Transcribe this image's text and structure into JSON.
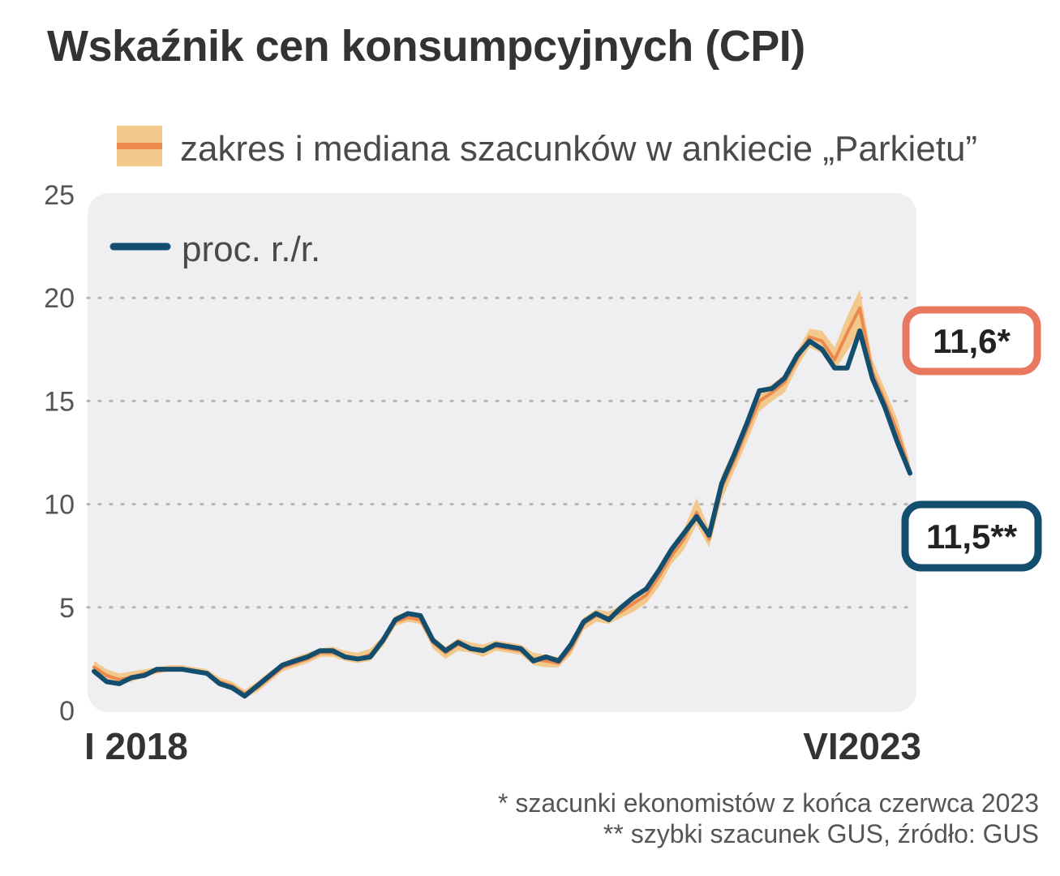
{
  "title": "Wskaźnik cen konsumpcyjnych (CPI)",
  "colors": {
    "cpi_line": "#134e6f",
    "range_band": "#f3c88d",
    "median_line": "#eb8a4c",
    "plot_bg": "#efeff1",
    "estimate_callout": "#e87960",
    "flash_callout": "#134e6f",
    "grid": "#b4b4b4"
  },
  "footnotes": {
    "note1": "* szacunki ekonomistów z końca czerwca 2023",
    "note2": "** szybki szacunek GUS, źródło: GUS"
  },
  "chart_data": {
    "type": "line",
    "title": "Wskaźnik cen konsumpcyjnych (CPI)",
    "ylim": [
      0,
      25
    ],
    "yticks": [
      0,
      5,
      10,
      15,
      20,
      25
    ],
    "grid": true,
    "x_start_label": "I 2018",
    "x_end_label": "VI2023",
    "legend": [
      {
        "key": "band",
        "label": "zakres i mediana szacunków w ankiecie „Parkietu”",
        "placement": "top"
      },
      {
        "key": "line",
        "label": "proc. r./r.",
        "placement": "top-left"
      }
    ],
    "series": [
      {
        "name": "proc. r./r.",
        "values": [
          1.9,
          1.4,
          1.3,
          1.6,
          1.7,
          2.0,
          2.0,
          2.0,
          1.9,
          1.8,
          1.3,
          1.1,
          0.7,
          1.2,
          1.7,
          2.2,
          2.4,
          2.6,
          2.9,
          2.9,
          2.6,
          2.5,
          2.6,
          3.4,
          4.4,
          4.7,
          4.6,
          3.4,
          2.9,
          3.3,
          3.0,
          2.9,
          3.2,
          3.1,
          3.0,
          2.4,
          2.6,
          2.4,
          3.2,
          4.3,
          4.7,
          4.4,
          5.0,
          5.5,
          5.9,
          6.8,
          7.8,
          8.6,
          9.4,
          8.5,
          11.0,
          12.4,
          13.9,
          15.5,
          15.6,
          16.1,
          17.2,
          17.9,
          17.5,
          16.6,
          16.6,
          18.4,
          16.1,
          14.7,
          13.0,
          11.5
        ]
      },
      {
        "name": "mediana szacunków",
        "values": [
          2.1,
          1.7,
          1.5,
          1.6,
          1.8,
          1.9,
          2.0,
          2.0,
          1.9,
          1.8,
          1.4,
          1.2,
          0.8,
          1.1,
          1.6,
          2.1,
          2.3,
          2.5,
          2.8,
          2.8,
          2.6,
          2.5,
          2.7,
          3.3,
          4.3,
          4.5,
          4.4,
          3.3,
          2.8,
          3.2,
          3.0,
          2.9,
          3.1,
          3.0,
          2.9,
          2.5,
          2.4,
          2.3,
          3.0,
          4.2,
          4.6,
          4.5,
          4.8,
          5.2,
          5.6,
          6.5,
          7.5,
          8.3,
          9.6,
          8.3,
          10.8,
          12.1,
          13.6,
          15.0,
          15.4,
          15.9,
          17.0,
          18.1,
          17.9,
          17.0,
          18.3,
          19.5,
          16.4,
          15.0,
          13.5,
          11.6
        ]
      }
    ],
    "range": {
      "low": [
        1.9,
        1.5,
        1.3,
        1.4,
        1.6,
        1.8,
        1.9,
        1.9,
        1.8,
        1.7,
        1.2,
        1.0,
        0.6,
        0.9,
        1.4,
        1.9,
        2.1,
        2.3,
        2.6,
        2.6,
        2.4,
        2.3,
        2.4,
        3.1,
        4.1,
        4.3,
        4.2,
        3.0,
        2.5,
        2.9,
        2.8,
        2.6,
        2.9,
        2.8,
        2.7,
        2.2,
        2.1,
        2.1,
        2.7,
        3.9,
        4.3,
        4.2,
        4.5,
        4.8,
        5.2,
        6.0,
        7.1,
        7.8,
        9.0,
        7.9,
        10.2,
        11.6,
        13.0,
        14.5,
        15.0,
        15.4,
        16.6,
        17.6,
        17.3,
        16.5,
        17.4,
        18.4,
        15.9,
        14.4,
        13.0,
        11.2
      ],
      "high": [
        2.4,
        2.0,
        1.8,
        1.9,
        2.0,
        2.1,
        2.2,
        2.2,
        2.1,
        2.0,
        1.6,
        1.4,
        1.0,
        1.4,
        1.9,
        2.3,
        2.6,
        2.8,
        3.0,
        3.1,
        2.9,
        2.8,
        3.0,
        3.6,
        4.6,
        4.8,
        4.7,
        3.6,
        3.1,
        3.5,
        3.3,
        3.2,
        3.4,
        3.3,
        3.2,
        2.8,
        2.7,
        2.6,
        3.3,
        4.5,
        4.9,
        4.8,
        5.1,
        5.6,
        6.0,
        6.9,
        8.0,
        8.8,
        10.3,
        8.8,
        11.4,
        12.7,
        14.2,
        15.5,
        15.8,
        16.3,
        17.4,
        18.5,
        18.4,
        17.6,
        19.1,
        20.4,
        17.0,
        15.6,
        14.1,
        12.0
      ]
    },
    "callouts": [
      {
        "id": "estimate",
        "value": 11.6,
        "label": "11,6*"
      },
      {
        "id": "flash",
        "value": 11.5,
        "label": "11,5**"
      }
    ]
  }
}
